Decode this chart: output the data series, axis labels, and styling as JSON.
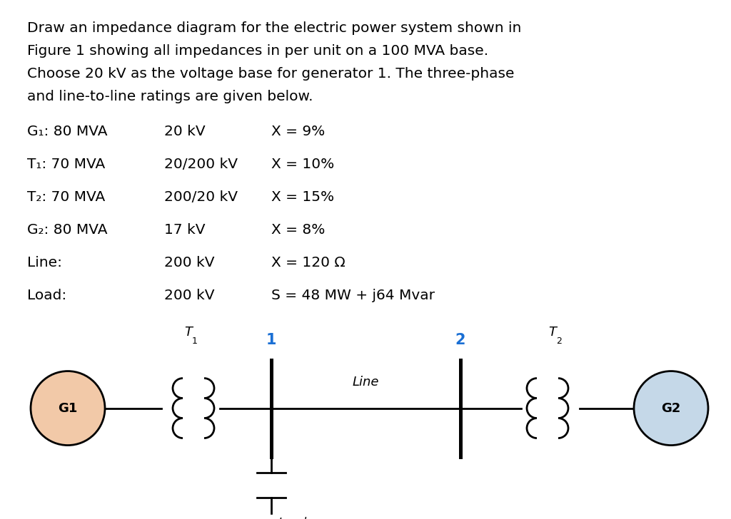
{
  "background_color": "#ffffff",
  "text_color": "#000000",
  "title_text": "Draw an impedance diagram for the electric power system shown in Figure 1 showing all impedances in per unit on a 100 MVA base. Choose 20 kV as the voltage base for generator 1. The three-phase and line-to-line ratings are given below.",
  "specs": [
    {
      "label": "G₁: 80 MVA",
      "col2": "20 kV",
      "col3": "X = 9%"
    },
    {
      "label": "T₁: 70 MVA",
      "col2": "20/200 kV",
      "col3": "X = 10%"
    },
    {
      "label": "T₂: 70 MVA",
      "col2": "200/20 kV",
      "col3": "X = 15%"
    },
    {
      "label": "G₂: 80 MVA",
      "col2": "17 kV",
      "col3": "X = 8%"
    },
    {
      "label": "Line:",
      "col2": "200 kV",
      "col3": "X = 120 Ω"
    },
    {
      "label": "Load:",
      "col2": "200 kV",
      "col3": "S = 48 MW + j64 Mvar"
    }
  ],
  "diagram": {
    "g1_color": "#f2c9a8",
    "g2_color": "#c5d8e8",
    "g1_label": "G1",
    "g2_label": "G2",
    "t1_label": "T",
    "t1_sub": "1",
    "t2_label": "T",
    "t2_sub": "2",
    "line_label": "Line",
    "load_label": "Load",
    "bus1_label": "1",
    "bus2_label": "2",
    "bus_label_color": "#1a6fd4"
  }
}
